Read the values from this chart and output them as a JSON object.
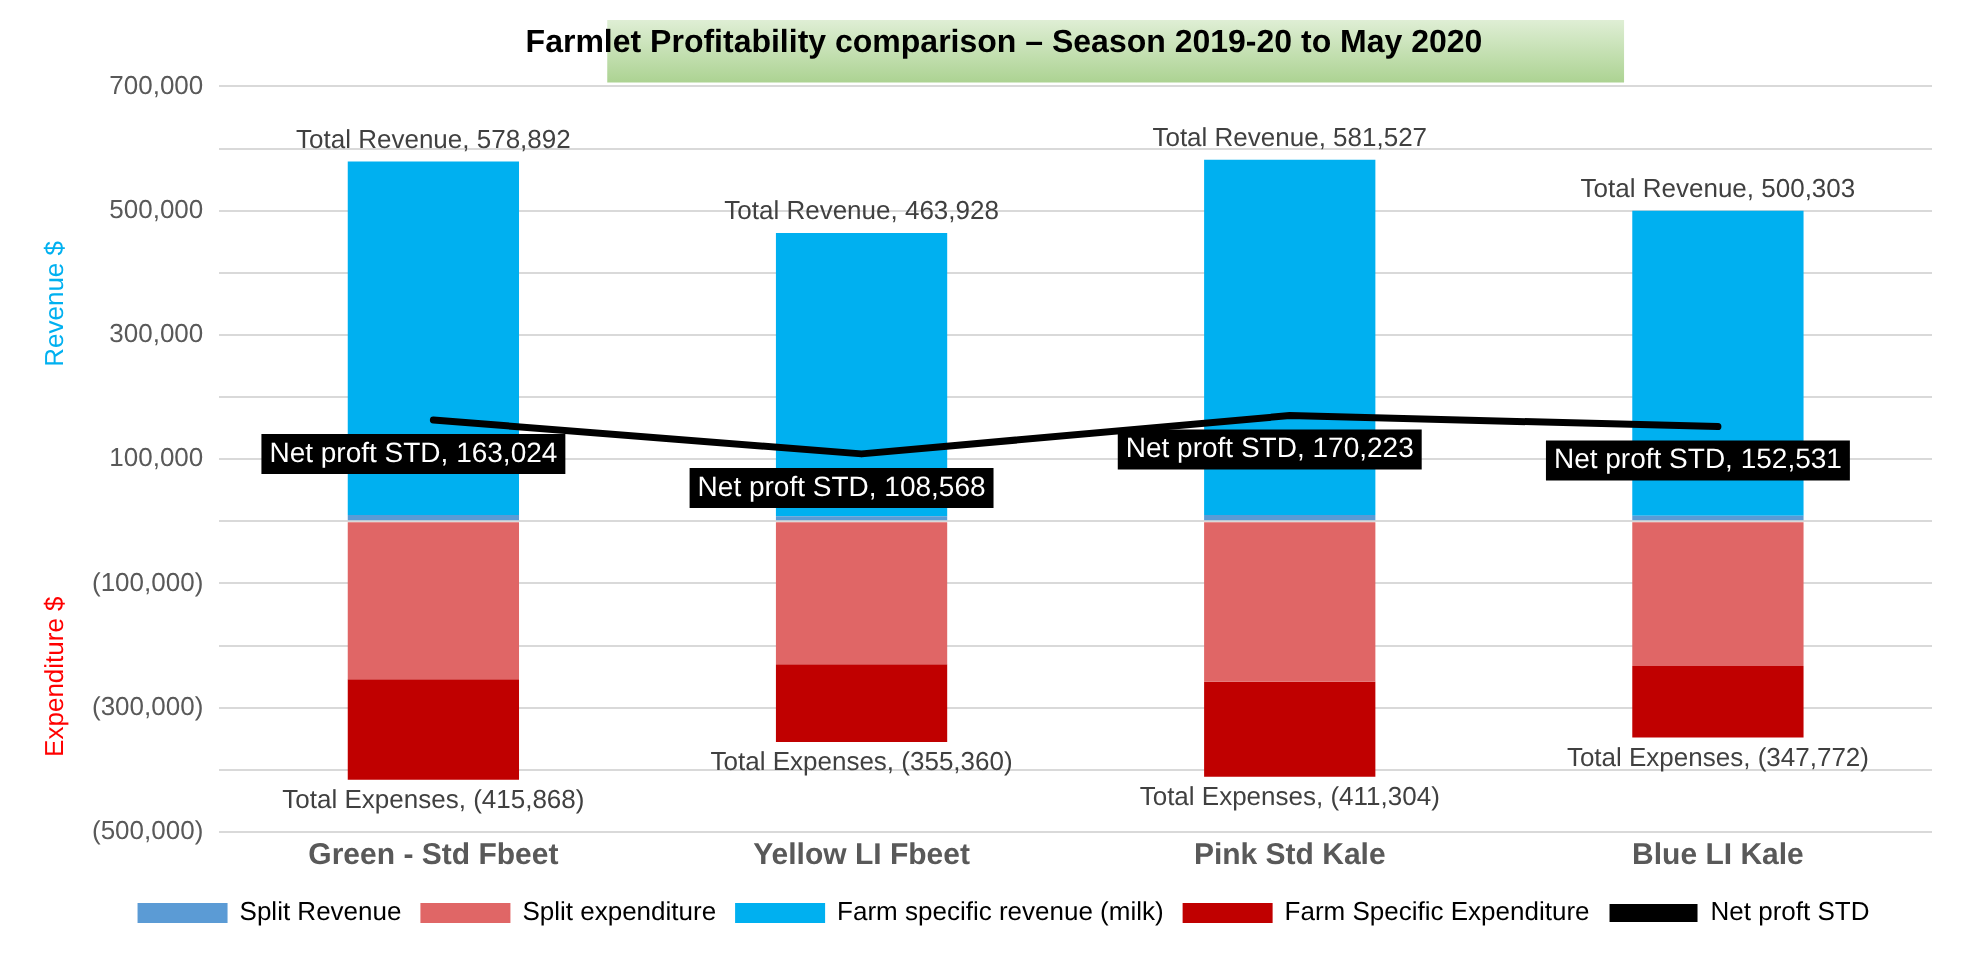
{
  "chart_data": {
    "type": "bar",
    "title": "Farmlet Profitability comparison – Season 2019-20 to May 2020",
    "ylabel": "Revenue $",
    "stacked": true,
    "grid": "y",
    "legend": "bottom",
    "categories": [
      "Green - Std Fbeet",
      "Yellow LI Fbeet",
      "Pink Std Kale",
      "Blue LI Kale"
    ],
    "ylim": [
      -500000,
      700000
    ],
    "yticks": [
      {
        "value": -500000,
        "label": "(500,000)"
      },
      {
        "value": -400000,
        "label": null
      },
      {
        "value": -300000,
        "label": "(300,000)"
      },
      {
        "value": -200000,
        "label": null
      },
      {
        "value": -100000,
        "label": "(100,000)"
      },
      {
        "value": 0,
        "label": null
      },
      {
        "value": 100000,
        "label": "100,000"
      },
      {
        "value": 200000,
        "label": null
      },
      {
        "value": 300000,
        "label": "300,000"
      },
      {
        "value": 400000,
        "label": null
      },
      {
        "value": 500000,
        "label": "500,000"
      },
      {
        "value": 600000,
        "label": null
      },
      {
        "value": 700000,
        "label": "700,000"
      }
    ],
    "series": [
      {
        "name": "Split Revenue",
        "color": "#5b9bd5",
        "values": [
          10000,
          8000,
          10000,
          9000
        ]
      },
      {
        "name": "Split expenditure",
        "color": "#e06666",
        "values": [
          -254000,
          -230000,
          -258000,
          -233000
        ]
      },
      {
        "name": "Farm specific revenue (milk)",
        "color": "#00b0f0",
        "values": [
          569000,
          456000,
          572000,
          491000
        ]
      },
      {
        "name": "Farm Specific Expenditure",
        "color": "#c00000",
        "values": [
          -162000,
          -125000,
          -153000,
          -115000
        ]
      },
      {
        "name": "Net proft STD",
        "type": "line",
        "color": "#000000",
        "values": [
          163024,
          108568,
          170223,
          152531
        ],
        "value_labels": [
          "Net proft STD, 163,024",
          "Net proft STD, 108,568",
          "Net proft STD, 170,223",
          "Net proft STD, 152,531"
        ]
      }
    ],
    "annotations": [
      {
        "text": "Total Revenue, 578,892",
        "x": "Green - Std Fbeet",
        "y": 578892
      },
      {
        "text": "Total Revenue, 463,928",
        "x": "Yellow LI Fbeet",
        "y": 463928
      },
      {
        "text": "Total Revenue, 581,527",
        "x": "Pink Std Kale",
        "y": 581527
      },
      {
        "text": "Total Revenue, 500,303",
        "x": "Blue LI Kale",
        "y": 500303
      },
      {
        "text": "Total Expenses, (415,868)",
        "x": "Green - Std Fbeet",
        "y": -415868
      },
      {
        "text": "Total Expenses, (355,360)",
        "x": "Yellow LI Fbeet",
        "y": -355360
      },
      {
        "text": "Total Expenses, (411,304)",
        "x": "Pink Std Kale",
        "y": -411304
      },
      {
        "text": "Total Expenses, (347,772)",
        "x": "Blue LI Kale",
        "y": -347772
      },
      "Expenditure $"
    ]
  }
}
